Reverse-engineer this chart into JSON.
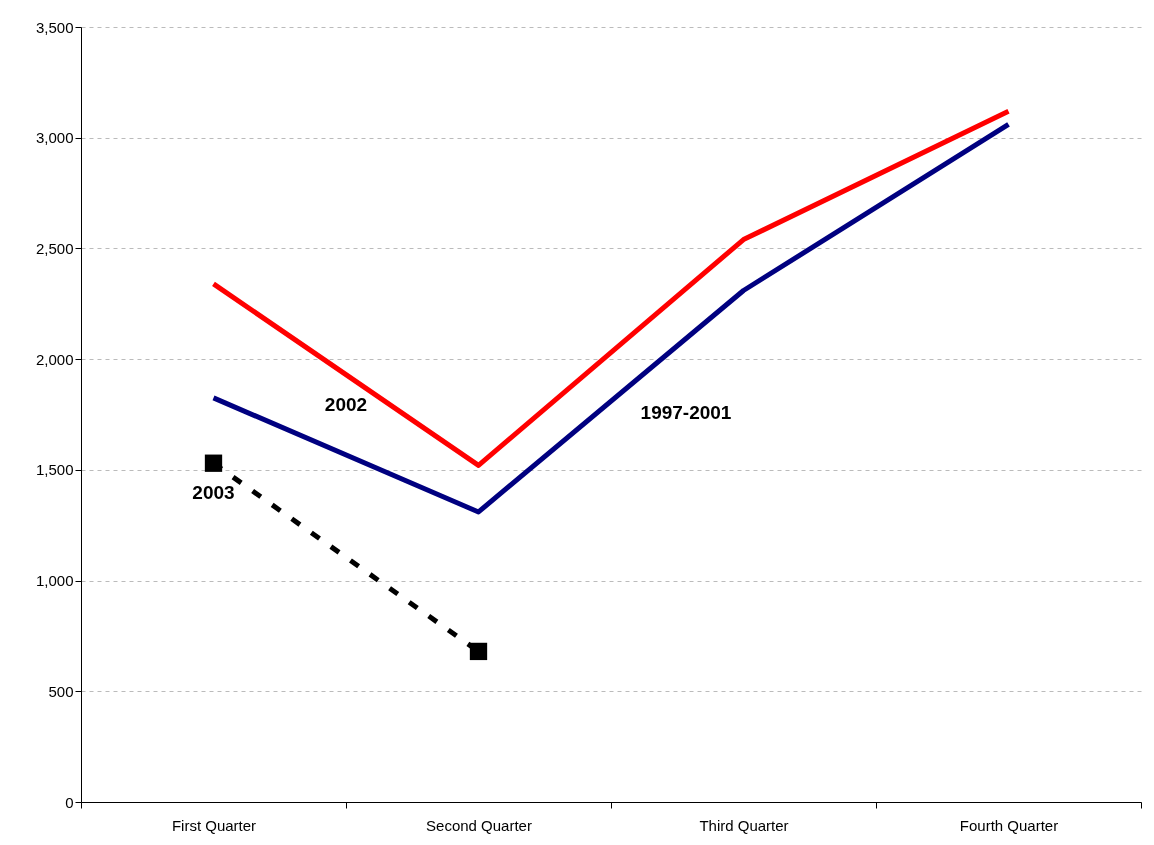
{
  "chart_data": {
    "type": "line",
    "categories": [
      "First Quarter",
      "Second Quarter",
      "Third Quarter",
      "Fourth Quarter"
    ],
    "series": [
      {
        "name": "1997-2001",
        "color": "#000080",
        "values": [
          1825,
          1310,
          2310,
          3060
        ]
      },
      {
        "name": "2002",
        "color": "#ff0000",
        "values": [
          2340,
          1520,
          2540,
          3120
        ]
      },
      {
        "name": "2003",
        "color": "#000000",
        "values": [
          1530,
          680,
          null,
          null
        ],
        "marker": "square",
        "line_style": "dashed"
      }
    ],
    "ylim": [
      0,
      3500
    ],
    "yticks": [
      {
        "value": 0,
        "label": "0"
      },
      {
        "value": 500,
        "label": "500"
      },
      {
        "value": 1000,
        "label": "1,000"
      },
      {
        "value": 1500,
        "label": "1,500"
      },
      {
        "value": 2000,
        "label": "2,000"
      },
      {
        "value": 2500,
        "label": "2,500"
      },
      {
        "value": 3000,
        "label": "3,000"
      },
      {
        "value": 3500,
        "label": "3,500"
      }
    ],
    "grid": "y"
  }
}
